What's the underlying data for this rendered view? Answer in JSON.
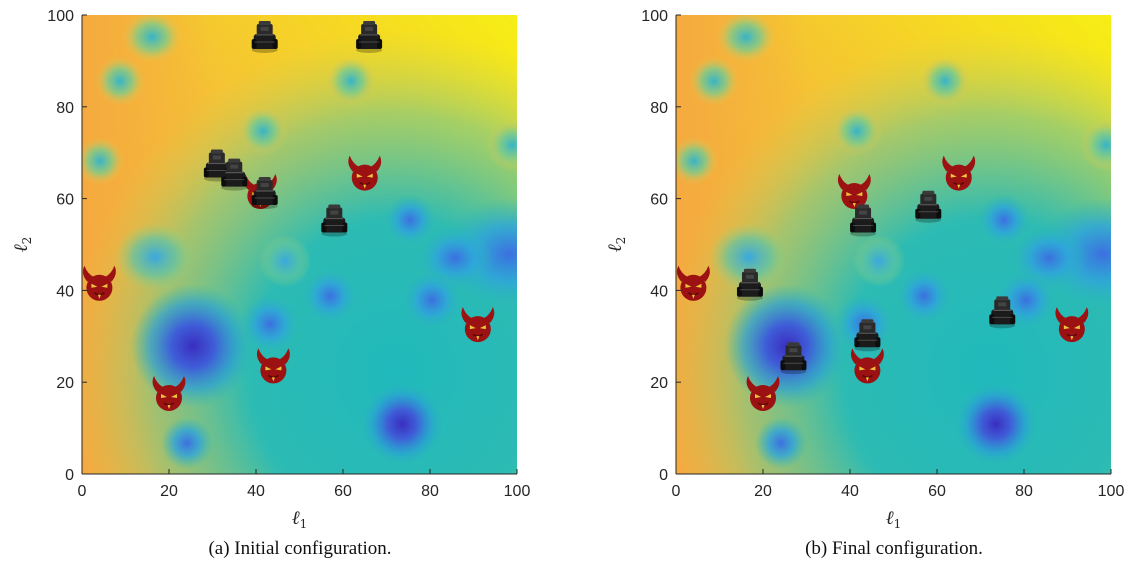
{
  "chart_data": [
    {
      "type": "scatter",
      "caption": "(a) Initial configuration.",
      "xlabel": "ℓ1",
      "ylabel": "ℓ2",
      "xlim": [
        0,
        100
      ],
      "ylim": [
        0,
        100
      ],
      "xticks": [
        0,
        20,
        40,
        60,
        80,
        100
      ],
      "yticks": [
        0,
        20,
        40,
        60,
        80,
        100
      ],
      "background": "heatmap field (yellow high to blue low)",
      "series": [
        {
          "marker": "robot-icon",
          "points": [
            [
              42,
              95
            ],
            [
              66,
              95
            ],
            [
              31,
              67
            ],
            [
              35,
              65
            ],
            [
              42,
              61
            ],
            [
              58,
              55
            ]
          ]
        },
        {
          "marker": "devil-icon",
          "points": [
            [
              4,
              41
            ],
            [
              20,
              17
            ],
            [
              44,
              23
            ],
            [
              41,
              61
            ],
            [
              65,
              65
            ],
            [
              91,
              32
            ]
          ]
        }
      ]
    },
    {
      "type": "scatter",
      "caption": "(b) Final configuration.",
      "xlabel": "ℓ1",
      "ylabel": "ℓ2",
      "xlim": [
        0,
        100
      ],
      "ylim": [
        0,
        100
      ],
      "xticks": [
        0,
        20,
        40,
        60,
        80,
        100
      ],
      "yticks": [
        0,
        20,
        40,
        60,
        80,
        100
      ],
      "background": "heatmap field (yellow high to blue low)",
      "series": [
        {
          "marker": "robot-icon",
          "points": [
            [
              17,
              41
            ],
            [
              27,
              25
            ],
            [
              43,
              55
            ],
            [
              44,
              30
            ],
            [
              58,
              58
            ],
            [
              75,
              35
            ]
          ]
        },
        {
          "marker": "devil-icon",
          "points": [
            [
              4,
              41
            ],
            [
              20,
              17
            ],
            [
              44,
              23
            ],
            [
              41,
              61
            ],
            [
              65,
              65
            ],
            [
              91,
              32
            ]
          ]
        }
      ]
    }
  ],
  "colors": {
    "field_high": "#f6e916",
    "field_mid": "#f2b541",
    "field_low": "#2ab8b8",
    "well": "#3f3fd0",
    "devil": "#9c1212",
    "robot": "#1f1f1f"
  }
}
